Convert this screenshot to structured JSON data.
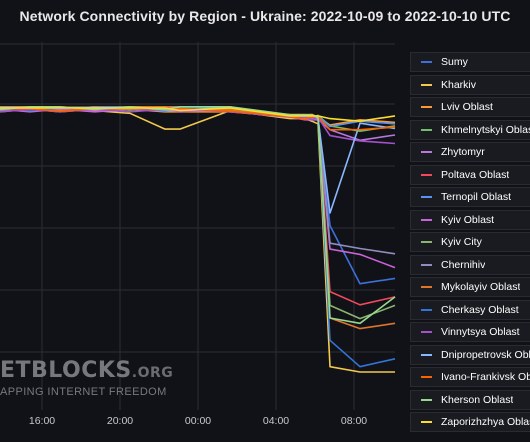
{
  "chart_data": {
    "type": "line",
    "title": "Network Connectivity by Region - Ukraine: 2022-10-09 to 2022-10-10 UTC",
    "xlabel": "",
    "ylabel": "",
    "x_tick_labels": [
      "16:00",
      "20:00",
      "00:00",
      "04:00",
      "08:00"
    ],
    "grid": true,
    "legend_position": "right",
    "series": [
      {
        "name": "Sumy",
        "color": "#3d71d9",
        "values": [
          100,
          100,
          99,
          100,
          100,
          99,
          99,
          100,
          96,
          96,
          97,
          96,
          55,
          33,
          35
        ]
      },
      {
        "name": "Kharkiv",
        "color": "#f2c94c",
        "values": [
          100,
          100,
          99,
          99,
          98,
          92,
          92,
          99,
          96,
          96,
          95,
          94,
          2,
          0,
          0
        ]
      },
      {
        "name": "Lviv Oblast",
        "color": "#ff9830",
        "values": [
          99,
          100,
          99,
          100,
          100,
          99,
          99,
          99,
          97,
          97,
          98,
          97,
          94,
          96,
          95
        ]
      },
      {
        "name": "Khmelnytskyi Oblast",
        "color": "#73bf69",
        "values": [
          100,
          99,
          100,
          100,
          99,
          100,
          99,
          100,
          97,
          97,
          96,
          97,
          93,
          91,
          93
        ]
      },
      {
        "name": "Zhytomyr",
        "color": "#b877d9",
        "values": [
          99,
          100,
          100,
          99,
          100,
          99,
          100,
          99,
          97,
          97,
          97,
          96,
          92,
          88,
          90
        ]
      },
      {
        "name": "Poltava Oblast",
        "color": "#f2495c",
        "values": [
          100,
          100,
          99,
          100,
          99,
          100,
          100,
          99,
          97,
          97,
          96,
          96,
          30,
          25,
          28
        ]
      },
      {
        "name": "Ternopil Oblast",
        "color": "#5794f2",
        "values": [
          99,
          100,
          100,
          100,
          100,
          99,
          100,
          100,
          97,
          97,
          97,
          97,
          93,
          95,
          94
        ]
      },
      {
        "name": "Kyiv Oblast",
        "color": "#ca63d8",
        "values": [
          100,
          99,
          100,
          99,
          100,
          100,
          99,
          100,
          97,
          96,
          96,
          96,
          47,
          45,
          40
        ]
      },
      {
        "name": "Kyiv City",
        "color": "#8ab56e",
        "values": [
          100,
          100,
          100,
          100,
          99,
          100,
          100,
          99,
          97,
          97,
          97,
          96,
          25,
          20,
          25
        ]
      },
      {
        "name": "Chernihiv",
        "color": "#8f8fbf",
        "values": [
          99,
          100,
          99,
          100,
          100,
          99,
          100,
          100,
          97,
          97,
          96,
          97,
          49,
          47,
          45
        ]
      },
      {
        "name": "Mykolayiv Oblast",
        "color": "#e0752d",
        "values": [
          100,
          100,
          100,
          99,
          100,
          100,
          99,
          99,
          97,
          97,
          97,
          96,
          20,
          16,
          18
        ]
      },
      {
        "name": "Cherkasy Oblast",
        "color": "#3274d9",
        "values": [
          100,
          99,
          100,
          100,
          100,
          99,
          100,
          100,
          97,
          97,
          97,
          97,
          12,
          2,
          5
        ]
      },
      {
        "name": "Vinnytsya Oblast",
        "color": "#a352cc",
        "values": [
          99,
          100,
          99,
          100,
          99,
          100,
          100,
          99,
          97,
          97,
          96,
          97,
          90,
          88,
          87
        ]
      },
      {
        "name": "Dnipropetrovsk Oblast",
        "color": "#8ab8ff",
        "values": [
          100,
          100,
          100,
          100,
          100,
          99,
          99,
          100,
          97,
          97,
          97,
          96,
          60,
          94,
          92
        ]
      },
      {
        "name": "Ivano-Frankivsk Oblast",
        "color": "#fa6400",
        "values": [
          100,
          100,
          99,
          100,
          100,
          100,
          100,
          99,
          97,
          96,
          97,
          97,
          92,
          92,
          93
        ]
      },
      {
        "name": "Kherson Oblast",
        "color": "#96d98d",
        "values": [
          99,
          100,
          100,
          99,
          100,
          99,
          100,
          100,
          97,
          97,
          97,
          96,
          20,
          18,
          28
        ]
      },
      {
        "name": "Zaporizhzhya Oblast",
        "color": "#fade2a",
        "values": [
          100,
          100,
          100,
          100,
          100,
          100,
          99,
          100,
          97,
          97,
          97,
          97,
          96,
          95,
          97
        ]
      }
    ]
  },
  "watermark": {
    "main": "ETBLOCKS",
    "suffix": ".ORG",
    "tagline": "APPING INTERNET FREEDOM"
  }
}
